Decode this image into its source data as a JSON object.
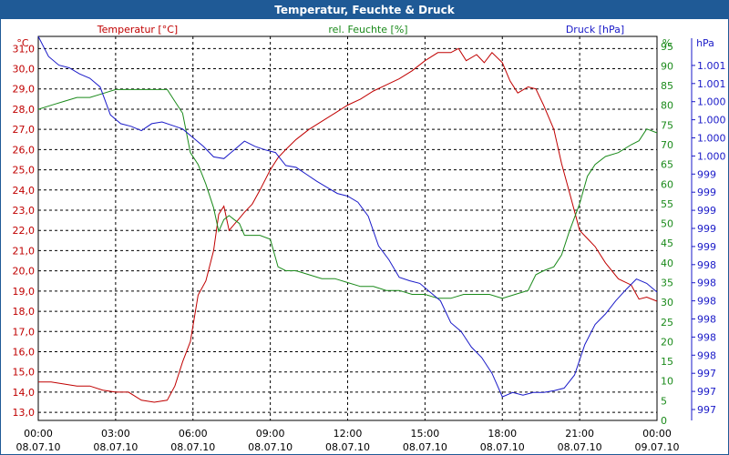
{
  "window": {
    "title": "Temperatur, Feuchte & Druck"
  },
  "chart_data": {
    "type": "line",
    "title": "Temperatur, Feuchte & Druck",
    "colors": {
      "temperature": "#c00000",
      "humidity": "#1a8a1a",
      "pressure": "#1a1ac8",
      "titlebar": "#1f5a96"
    },
    "x_time_labels": [
      "00:00",
      "03:00",
      "06:00",
      "09:00",
      "12:00",
      "15:00",
      "18:00",
      "21:00",
      "00:00"
    ],
    "x_date_labels": [
      "08.07.10",
      "08.07.10",
      "08.07.10",
      "08.07.10",
      "08.07.10",
      "08.07.10",
      "08.07.10",
      "08.07.10",
      "09.07.10"
    ],
    "xlim_hours": [
      0,
      24
    ],
    "left_axis": {
      "unit": "°C",
      "label": "Temperatur [°C]",
      "ylim": [
        12.6,
        31.6
      ],
      "ticks": [
        "13,0",
        "14,0",
        "15,0",
        "16,0",
        "17,0",
        "18,0",
        "19,0",
        "20,0",
        "21,0",
        "22,0",
        "23,0",
        "24,0",
        "25,0",
        "26,0",
        "27,0",
        "28,0",
        "29,0",
        "30,0",
        "31,0"
      ]
    },
    "right_axis_1": {
      "unit": "%",
      "label": "rel. Feuchte [%]",
      "ylim": [
        0,
        97.5
      ],
      "ticks": [
        "0",
        "5",
        "10",
        "15",
        "20",
        "25",
        "30",
        "35",
        "40",
        "45",
        "50",
        "55",
        "60",
        "65",
        "70",
        "75",
        "80",
        "85",
        "90",
        "95"
      ]
    },
    "right_axis_2": {
      "unit": "hPa",
      "label": "Druck [hPa]",
      "ylim": [
        996.88,
        1001.28
      ],
      "ticks": [
        "997",
        "997",
        "997",
        "998",
        "998",
        "998",
        "998",
        "998",
        "998",
        "999",
        "999",
        "999",
        "999",
        "999",
        "1.000",
        "1.000",
        "1.000",
        "1.000",
        "1.001",
        "1.001"
      ]
    },
    "series": [
      {
        "name": "Temperatur [°C]",
        "axis": "left",
        "x": [
          0,
          0.5,
          1,
          1.5,
          2,
          2.5,
          3,
          3.5,
          4,
          4.5,
          5,
          5.3,
          5.6,
          5.9,
          6.2,
          6.5,
          6.8,
          7,
          7.2,
          7.4,
          7.6,
          7.8,
          8,
          8.3,
          8.6,
          9,
          9.3,
          9.6,
          10,
          10.5,
          11,
          11.5,
          12,
          12.5,
          13,
          13.5,
          14,
          14.5,
          15,
          15.5,
          16,
          16.3,
          16.6,
          17,
          17.3,
          17.6,
          18,
          18.3,
          18.6,
          19,
          19.3,
          19.6,
          20,
          20.3,
          20.6,
          21,
          21.3,
          21.6,
          22,
          22.5,
          23,
          23.3,
          23.6,
          24
        ],
        "values": [
          14.5,
          14.5,
          14.4,
          14.3,
          14.3,
          14.1,
          14.0,
          14.0,
          13.6,
          13.5,
          13.6,
          14.3,
          15.5,
          16.5,
          18.8,
          19.5,
          21.0,
          22.8,
          23.2,
          22.0,
          22.3,
          22.6,
          22.9,
          23.3,
          24.0,
          25.0,
          25.6,
          26.0,
          26.5,
          27.0,
          27.4,
          27.8,
          28.2,
          28.5,
          28.9,
          29.2,
          29.5,
          29.9,
          30.4,
          30.8,
          30.8,
          31.0,
          30.4,
          30.7,
          30.3,
          30.8,
          30.3,
          29.4,
          28.8,
          29.1,
          29.0,
          28.2,
          27.0,
          25.3,
          23.9,
          22.0,
          21.6,
          21.2,
          20.4,
          19.6,
          19.3,
          18.6,
          18.7,
          18.5
        ]
      },
      {
        "name": "rel. Feuchte [%]",
        "axis": "right1",
        "x": [
          0,
          0.5,
          1,
          1.5,
          2,
          2.5,
          3,
          3.5,
          4,
          4.5,
          5,
          5.3,
          5.6,
          5.9,
          6.2,
          6.5,
          6.8,
          7,
          7.2,
          7.4,
          7.6,
          7.8,
          8,
          8.3,
          8.6,
          9,
          9.3,
          9.6,
          10,
          10.5,
          11,
          11.5,
          12,
          12.5,
          13,
          13.5,
          14,
          14.5,
          15,
          15.5,
          16,
          16.5,
          17,
          17.5,
          18,
          18.5,
          19,
          19.3,
          19.6,
          20,
          20.3,
          20.6,
          21,
          21.3,
          21.6,
          22,
          22.5,
          23,
          23.3,
          23.6,
          24
        ],
        "values": [
          79,
          80,
          81,
          82,
          82,
          83,
          84,
          84,
          84,
          84,
          84,
          81,
          78,
          68,
          65,
          60,
          54,
          48,
          51,
          52,
          51,
          50,
          47,
          47,
          47,
          46,
          39,
          38,
          38,
          37,
          36,
          36,
          35,
          34,
          34,
          33,
          33,
          32,
          32,
          31,
          31,
          32,
          32,
          32,
          31,
          32,
          33,
          37,
          38,
          39,
          42,
          48,
          55,
          62,
          65,
          67,
          68,
          70,
          71,
          74,
          73
        ]
      },
      {
        "name": "Druck [hPa]",
        "axis": "right2",
        "x": [
          0,
          0.4,
          0.8,
          1.2,
          1.6,
          2,
          2.4,
          2.8,
          3.2,
          3.6,
          4,
          4.4,
          4.8,
          5.2,
          5.6,
          6,
          6.4,
          6.8,
          7.2,
          7.6,
          8,
          8.4,
          8.8,
          9.2,
          9.6,
          10,
          10.4,
          10.8,
          11.2,
          11.6,
          12,
          12.4,
          12.8,
          13.2,
          13.6,
          14,
          14.4,
          14.8,
          15.2,
          15.6,
          16,
          16.4,
          16.8,
          17.2,
          17.6,
          18,
          18.4,
          18.8,
          19.2,
          19.6,
          20,
          20.4,
          20.8,
          21.2,
          21.6,
          22,
          22.4,
          22.8,
          23.2,
          23.6,
          24
        ],
        "values": [
          1001.28,
          1001.05,
          1000.95,
          1000.92,
          1000.85,
          1000.8,
          1000.7,
          1000.38,
          1000.28,
          1000.25,
          1000.2,
          1000.28,
          1000.3,
          1000.26,
          1000.22,
          1000.12,
          1000.02,
          999.9,
          999.88,
          999.98,
          1000.08,
          1000.02,
          999.98,
          999.95,
          999.8,
          999.78,
          999.7,
          999.62,
          999.55,
          999.48,
          999.45,
          999.38,
          999.22,
          998.88,
          998.72,
          998.52,
          998.48,
          998.45,
          998.35,
          998.25,
          998.0,
          997.9,
          997.72,
          997.6,
          997.42,
          997.15,
          997.2,
          997.17,
          997.2,
          997.2,
          997.22,
          997.25,
          997.4,
          997.75,
          997.98,
          998.1,
          998.25,
          998.38,
          998.5,
          998.45,
          998.35
        ]
      }
    ]
  }
}
